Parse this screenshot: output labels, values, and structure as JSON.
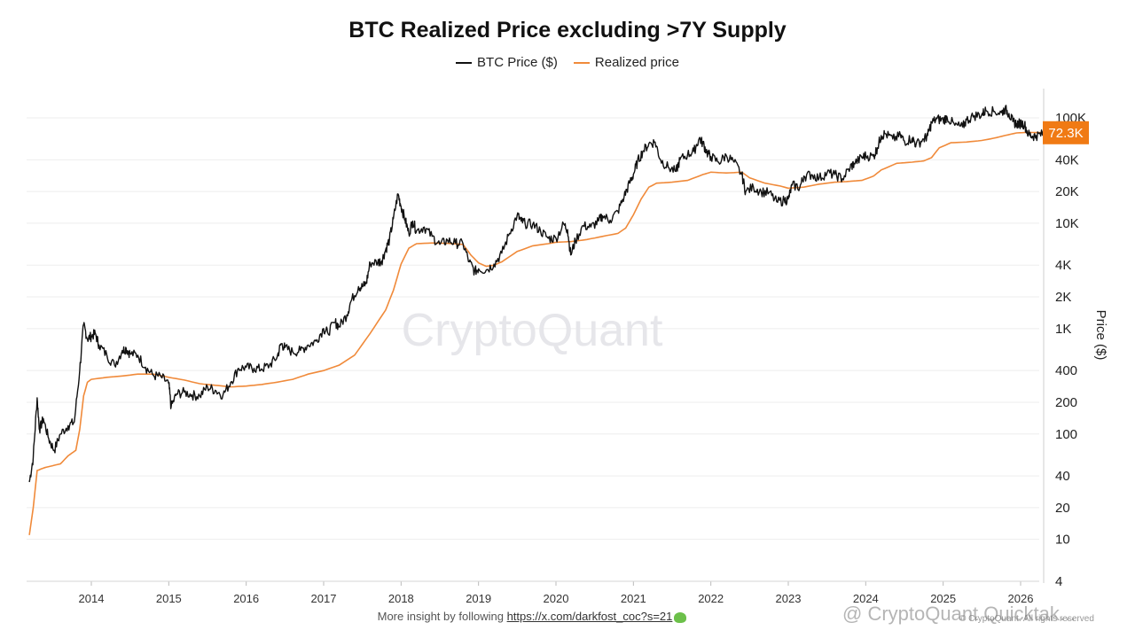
{
  "chart_data": {
    "type": "line",
    "title": "BTC Realized Price excluding >7Y Supply",
    "ylabel": "Price ($)",
    "xlabel": "",
    "yscale": "log",
    "ylim": [
      4,
      200000
    ],
    "xlim": [
      2013.2,
      2026.4
    ],
    "y_ticks": [
      {
        "value": 4,
        "label": "4"
      },
      {
        "value": 10,
        "label": "10"
      },
      {
        "value": 20,
        "label": "20"
      },
      {
        "value": 40,
        "label": "40"
      },
      {
        "value": 100,
        "label": "100"
      },
      {
        "value": 200,
        "label": "200"
      },
      {
        "value": 400,
        "label": "400"
      },
      {
        "value": 1000,
        "label": "1K"
      },
      {
        "value": 2000,
        "label": "2K"
      },
      {
        "value": 4000,
        "label": "4K"
      },
      {
        "value": 10000,
        "label": "10K"
      },
      {
        "value": 20000,
        "label": "20K"
      },
      {
        "value": 40000,
        "label": "40K"
      },
      {
        "value": 100000,
        "label": "100K"
      }
    ],
    "x_ticks": [
      {
        "value": 2014,
        "label": "2014"
      },
      {
        "value": 2015,
        "label": "2015"
      },
      {
        "value": 2016,
        "label": "2016"
      },
      {
        "value": 2017,
        "label": "2017"
      },
      {
        "value": 2018,
        "label": "2018"
      },
      {
        "value": 2019,
        "label": "2019"
      },
      {
        "value": 2020,
        "label": "2020"
      },
      {
        "value": 2021,
        "label": "2021"
      },
      {
        "value": 2022,
        "label": "2022"
      },
      {
        "value": 2023,
        "label": "2023"
      },
      {
        "value": 2024,
        "label": "2024"
      },
      {
        "value": 2025,
        "label": "2025"
      },
      {
        "value": 2026,
        "label": "2026"
      }
    ],
    "current_value_label": "72.3K",
    "current_value": 72300,
    "series": [
      {
        "name": "BTC Price ($)",
        "color": "#111111",
        "points": [
          [
            2013.2,
            35
          ],
          [
            2013.25,
            60
          ],
          [
            2013.3,
            220
          ],
          [
            2013.33,
            110
          ],
          [
            2013.38,
            140
          ],
          [
            2013.45,
            90
          ],
          [
            2013.52,
            70
          ],
          [
            2013.6,
            100
          ],
          [
            2013.7,
            120
          ],
          [
            2013.78,
            130
          ],
          [
            2013.85,
            400
          ],
          [
            2013.9,
            1100
          ],
          [
            2013.95,
            800
          ],
          [
            2014.0,
            850
          ],
          [
            2014.05,
            900
          ],
          [
            2014.1,
            700
          ],
          [
            2014.2,
            560
          ],
          [
            2014.3,
            450
          ],
          [
            2014.4,
            620
          ],
          [
            2014.45,
            650
          ],
          [
            2014.5,
            580
          ],
          [
            2014.6,
            560
          ],
          [
            2014.7,
            430
          ],
          [
            2014.8,
            360
          ],
          [
            2014.9,
            350
          ],
          [
            2015.0,
            300
          ],
          [
            2015.03,
            180
          ],
          [
            2015.1,
            240
          ],
          [
            2015.2,
            250
          ],
          [
            2015.3,
            235
          ],
          [
            2015.4,
            230
          ],
          [
            2015.5,
            280
          ],
          [
            2015.6,
            260
          ],
          [
            2015.7,
            235
          ],
          [
            2015.8,
            310
          ],
          [
            2015.9,
            420
          ],
          [
            2016.0,
            430
          ],
          [
            2016.1,
            420
          ],
          [
            2016.2,
            415
          ],
          [
            2016.3,
            450
          ],
          [
            2016.4,
            540
          ],
          [
            2016.45,
            720
          ],
          [
            2016.5,
            660
          ],
          [
            2016.6,
            600
          ],
          [
            2016.7,
            620
          ],
          [
            2016.8,
            700
          ],
          [
            2016.9,
            760
          ],
          [
            2017.0,
            1000
          ],
          [
            2017.05,
            920
          ],
          [
            2017.15,
            1150
          ],
          [
            2017.2,
            1050
          ],
          [
            2017.3,
            1350
          ],
          [
            2017.35,
            1800
          ],
          [
            2017.45,
            2500
          ],
          [
            2017.5,
            2500
          ],
          [
            2017.55,
            2700
          ],
          [
            2017.6,
            4200
          ],
          [
            2017.7,
            4300
          ],
          [
            2017.75,
            4400
          ],
          [
            2017.8,
            5600
          ],
          [
            2017.85,
            7000
          ],
          [
            2017.9,
            11000
          ],
          [
            2017.96,
            19000
          ],
          [
            2018.0,
            14500
          ],
          [
            2018.05,
            11000
          ],
          [
            2018.1,
            8000
          ],
          [
            2018.15,
            10500
          ],
          [
            2018.2,
            8500
          ],
          [
            2018.3,
            9200
          ],
          [
            2018.4,
            7500
          ],
          [
            2018.5,
            6300
          ],
          [
            2018.6,
            6900
          ],
          [
            2018.7,
            6500
          ],
          [
            2018.8,
            6400
          ],
          [
            2018.88,
            4300
          ],
          [
            2018.95,
            3500
          ],
          [
            2019.0,
            3700
          ],
          [
            2019.1,
            3600
          ],
          [
            2019.2,
            4100
          ],
          [
            2019.3,
            5200
          ],
          [
            2019.4,
            8000
          ],
          [
            2019.5,
            12000
          ],
          [
            2019.55,
            10500
          ],
          [
            2019.6,
            10000
          ],
          [
            2019.7,
            9800
          ],
          [
            2019.8,
            8500
          ],
          [
            2019.9,
            7200
          ],
          [
            2020.0,
            7200
          ],
          [
            2020.1,
            9800
          ],
          [
            2020.15,
            8700
          ],
          [
            2020.19,
            5000
          ],
          [
            2020.25,
            6800
          ],
          [
            2020.35,
            9500
          ],
          [
            2020.45,
            9200
          ],
          [
            2020.55,
            10500
          ],
          [
            2020.6,
            11800
          ],
          [
            2020.7,
            10700
          ],
          [
            2020.8,
            13000
          ],
          [
            2020.88,
            18000
          ],
          [
            2020.95,
            24000
          ],
          [
            2021.0,
            29000
          ],
          [
            2021.05,
            38000
          ],
          [
            2021.12,
            48000
          ],
          [
            2021.2,
            57000
          ],
          [
            2021.28,
            59000
          ],
          [
            2021.35,
            40000
          ],
          [
            2021.45,
            34000
          ],
          [
            2021.55,
            31000
          ],
          [
            2021.6,
            40000
          ],
          [
            2021.7,
            45000
          ],
          [
            2021.78,
            48000
          ],
          [
            2021.85,
            64000
          ],
          [
            2021.9,
            57000
          ],
          [
            2021.95,
            47000
          ],
          [
            2022.0,
            43000
          ],
          [
            2022.1,
            38000
          ],
          [
            2022.2,
            44000
          ],
          [
            2022.3,
            38000
          ],
          [
            2022.4,
            29000
          ],
          [
            2022.45,
            20000
          ],
          [
            2022.55,
            22000
          ],
          [
            2022.65,
            20000
          ],
          [
            2022.75,
            19500
          ],
          [
            2022.85,
            16000
          ],
          [
            2022.95,
            16500
          ],
          [
            2023.0,
            17000
          ],
          [
            2023.05,
            23000
          ],
          [
            2023.15,
            22000
          ],
          [
            2023.2,
            28000
          ],
          [
            2023.3,
            29000
          ],
          [
            2023.4,
            27000
          ],
          [
            2023.5,
            30000
          ],
          [
            2023.6,
            29000
          ],
          [
            2023.7,
            26500
          ],
          [
            2023.8,
            34000
          ],
          [
            2023.85,
            37000
          ],
          [
            2023.95,
            42000
          ],
          [
            2024.0,
            44000
          ],
          [
            2024.1,
            43000
          ],
          [
            2024.15,
            52000
          ],
          [
            2024.2,
            68000
          ],
          [
            2024.25,
            71000
          ],
          [
            2024.35,
            63000
          ],
          [
            2024.45,
            68000
          ],
          [
            2024.5,
            60000
          ],
          [
            2024.6,
            64000
          ],
          [
            2024.65,
            56000
          ],
          [
            2024.75,
            63000
          ],
          [
            2024.8,
            68000
          ],
          [
            2024.85,
            90000
          ],
          [
            2024.92,
            98000
          ],
          [
            2025.0,
            95000
          ],
          [
            2025.05,
            102000
          ],
          [
            2025.15,
            85000
          ],
          [
            2025.25,
            82000
          ],
          [
            2025.3,
            95000
          ],
          [
            2025.4,
            105000
          ],
          [
            2025.5,
            108000
          ],
          [
            2025.55,
            118000
          ],
          [
            2025.65,
            115000
          ],
          [
            2025.75,
            112000
          ],
          [
            2025.8,
            122000
          ],
          [
            2025.85,
            110000
          ],
          [
            2025.9,
            92000
          ],
          [
            2025.95,
            88000
          ],
          [
            2026.0,
            89000
          ],
          [
            2026.05,
            87000
          ],
          [
            2026.1,
            70000
          ],
          [
            2026.15,
            67000
          ],
          [
            2026.2,
            68000
          ],
          [
            2026.28,
            70000
          ],
          [
            2026.32,
            72300
          ]
        ]
      },
      {
        "name": "Realized price",
        "color": "#f08a3a",
        "points": [
          [
            2013.2,
            11
          ],
          [
            2013.25,
            20
          ],
          [
            2013.3,
            45
          ],
          [
            2013.4,
            48
          ],
          [
            2013.5,
            50
          ],
          [
            2013.6,
            52
          ],
          [
            2013.7,
            62
          ],
          [
            2013.75,
            66
          ],
          [
            2013.8,
            70
          ],
          [
            2013.85,
            110
          ],
          [
            2013.9,
            230
          ],
          [
            2013.95,
            310
          ],
          [
            2014.0,
            330
          ],
          [
            2014.2,
            345
          ],
          [
            2014.4,
            355
          ],
          [
            2014.6,
            370
          ],
          [
            2014.8,
            370
          ],
          [
            2015.0,
            345
          ],
          [
            2015.2,
            325
          ],
          [
            2015.4,
            300
          ],
          [
            2015.6,
            290
          ],
          [
            2015.8,
            280
          ],
          [
            2016.0,
            285
          ],
          [
            2016.2,
            295
          ],
          [
            2016.4,
            310
          ],
          [
            2016.6,
            330
          ],
          [
            2016.8,
            370
          ],
          [
            2017.0,
            400
          ],
          [
            2017.2,
            450
          ],
          [
            2017.4,
            560
          ],
          [
            2017.6,
            900
          ],
          [
            2017.8,
            1500
          ],
          [
            2017.9,
            2300
          ],
          [
            2018.0,
            4100
          ],
          [
            2018.1,
            5800
          ],
          [
            2018.2,
            6400
          ],
          [
            2018.4,
            6500
          ],
          [
            2018.6,
            6450
          ],
          [
            2018.8,
            6300
          ],
          [
            2018.9,
            5000
          ],
          [
            2019.0,
            4200
          ],
          [
            2019.1,
            3900
          ],
          [
            2019.2,
            4000
          ],
          [
            2019.3,
            4300
          ],
          [
            2019.5,
            5400
          ],
          [
            2019.7,
            6100
          ],
          [
            2019.9,
            6400
          ],
          [
            2020.0,
            6600
          ],
          [
            2020.2,
            6700
          ],
          [
            2020.4,
            7000
          ],
          [
            2020.6,
            7500
          ],
          [
            2020.8,
            8000
          ],
          [
            2020.9,
            9000
          ],
          [
            2021.0,
            12000
          ],
          [
            2021.1,
            17000
          ],
          [
            2021.2,
            22000
          ],
          [
            2021.3,
            24000
          ],
          [
            2021.5,
            24500
          ],
          [
            2021.7,
            25500
          ],
          [
            2021.9,
            29000
          ],
          [
            2022.0,
            30500
          ],
          [
            2022.2,
            30000
          ],
          [
            2022.4,
            30500
          ],
          [
            2022.5,
            27000
          ],
          [
            2022.7,
            24000
          ],
          [
            2022.9,
            22500
          ],
          [
            2023.0,
            21500
          ],
          [
            2023.2,
            22000
          ],
          [
            2023.4,
            23500
          ],
          [
            2023.6,
            24500
          ],
          [
            2023.8,
            25000
          ],
          [
            2023.95,
            25500
          ],
          [
            2024.1,
            28000
          ],
          [
            2024.2,
            32000
          ],
          [
            2024.4,
            37000
          ],
          [
            2024.6,
            38000
          ],
          [
            2024.75,
            39000
          ],
          [
            2024.85,
            42000
          ],
          [
            2024.95,
            52000
          ],
          [
            2025.1,
            58000
          ],
          [
            2025.3,
            59000
          ],
          [
            2025.5,
            61000
          ],
          [
            2025.65,
            64000
          ],
          [
            2025.8,
            68000
          ],
          [
            2025.95,
            72000
          ],
          [
            2026.1,
            72800
          ],
          [
            2026.32,
            72300
          ]
        ]
      }
    ]
  },
  "legend": {
    "btc_label": "BTC Price ($)",
    "realized_label": "Realized price",
    "btc_color": "#111111",
    "realized_color": "#f08a3a"
  },
  "watermark": "CryptoQuant",
  "footer": {
    "prefix": "More insight by following ",
    "link": "https://x.com/darkfost_coc?s=21"
  },
  "overlay_watermark": "@ CryptoQuant Quicktak...",
  "overlay_small": "© CryptoQuant. All rights reserved"
}
